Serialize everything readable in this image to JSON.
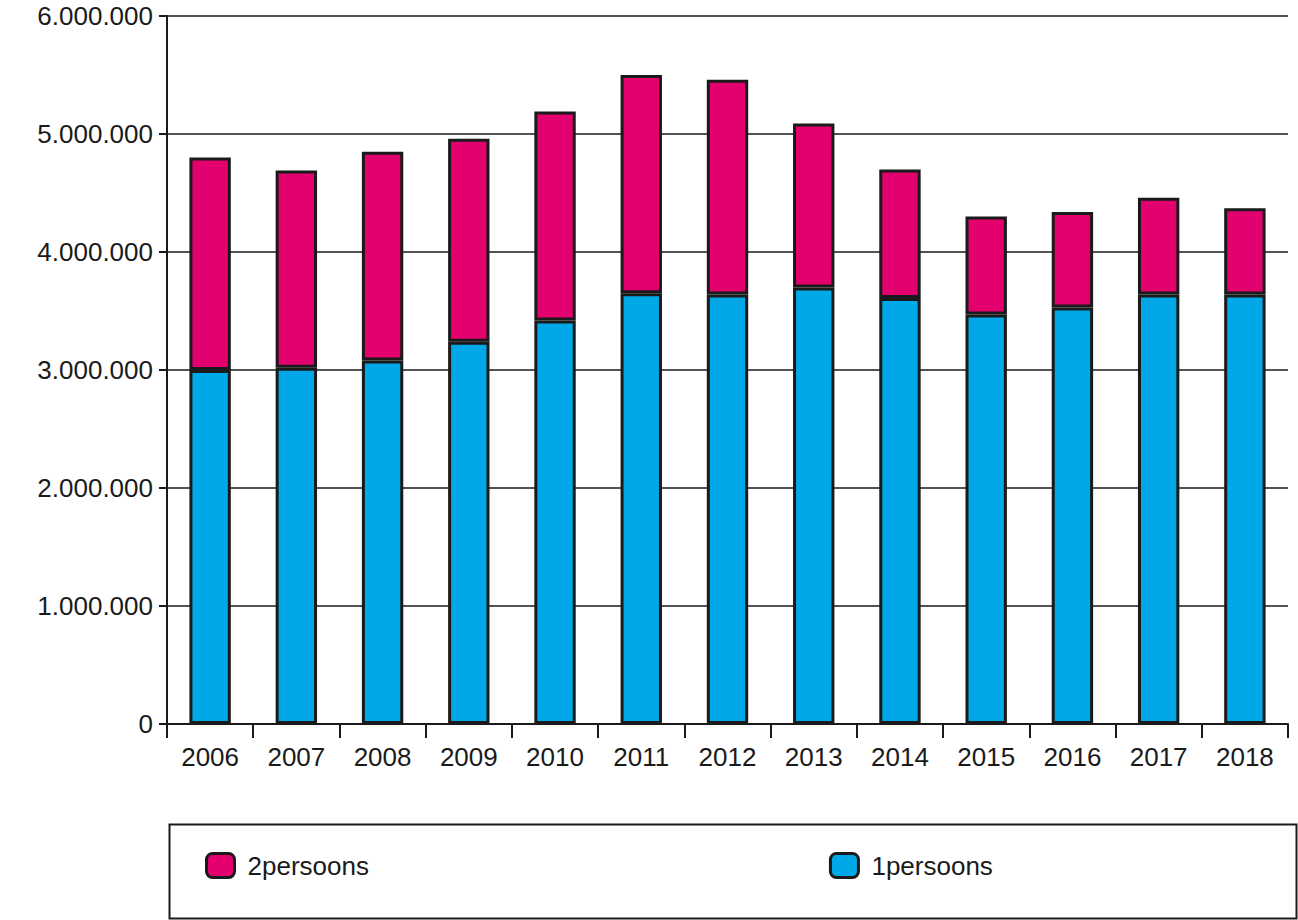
{
  "chart_data": {
    "type": "bar",
    "stacked": true,
    "grid": true,
    "legend": "bottom",
    "categories": [
      "2006",
      "2007",
      "2008",
      "2009",
      "2010",
      "2011",
      "2012",
      "2013",
      "2014",
      "2015",
      "2016",
      "2017",
      "2018"
    ],
    "series": [
      {
        "name": "1persoons",
        "color": "#00a8e8",
        "values": [
          3000000,
          3020000,
          3080000,
          3240000,
          3420000,
          3650000,
          3640000,
          3700000,
          3610000,
          3470000,
          3530000,
          3640000,
          3640000
        ]
      },
      {
        "name": "2persoons",
        "color": "#e3006f",
        "values": [
          1800000,
          1670000,
          1770000,
          1720000,
          1770000,
          1850000,
          1820000,
          1390000,
          1090000,
          830000,
          810000,
          820000,
          730000
        ]
      }
    ],
    "ylim": [
      0,
      6000000
    ],
    "yticks": [
      0,
      {
        "value": 1000000,
        "label": "1.000.000"
      },
      {
        "value": 2000000,
        "label": "2.000.000"
      },
      {
        "value": 3000000,
        "label": "3.000.000"
      },
      {
        "value": 4000000,
        "label": "4.000.000"
      },
      {
        "value": 5000000,
        "label": "5.000.000"
      },
      {
        "value": 6000000,
        "label": "6.000.000"
      }
    ]
  }
}
